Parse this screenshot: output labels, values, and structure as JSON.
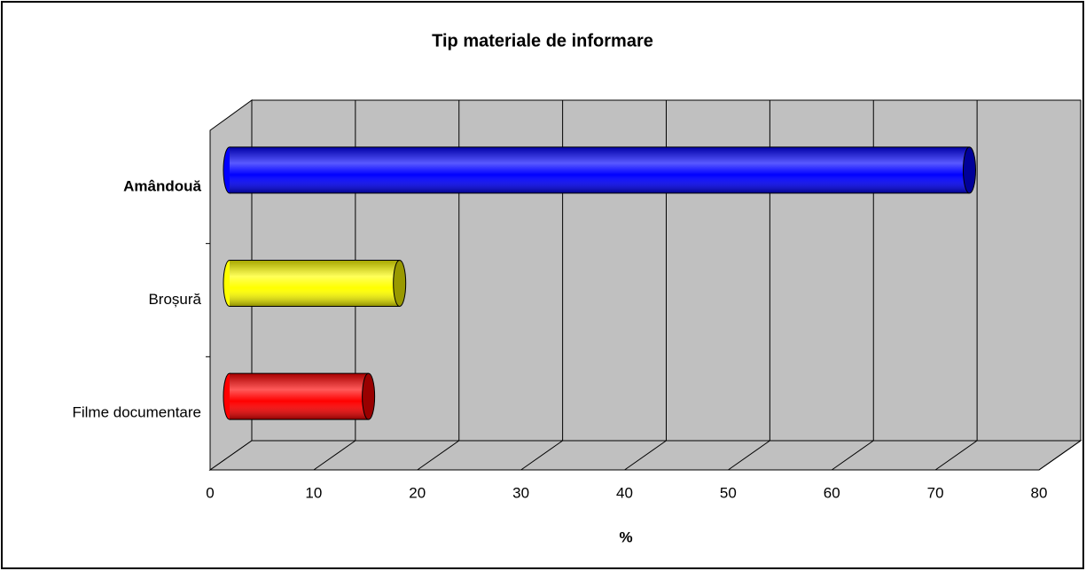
{
  "chart_data": {
    "type": "bar",
    "orientation": "horizontal",
    "title": "Tip materiale de informare",
    "x_label": "%",
    "categories": [
      "Amândouă",
      "Broșură",
      "Filme documentare"
    ],
    "values": [
      72,
      17,
      14
    ],
    "colors": [
      "#0000ff",
      "#ffff00",
      "#ff0000"
    ],
    "xlim": [
      0,
      80
    ],
    "xticks": [
      0,
      10,
      20,
      30,
      40,
      50,
      60,
      70,
      80
    ],
    "grid": true
  }
}
